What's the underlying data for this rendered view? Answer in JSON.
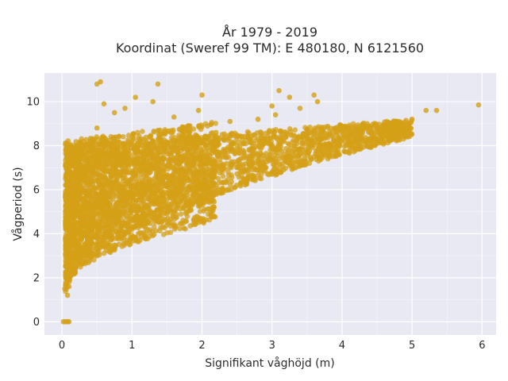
{
  "chart_data": {
    "type": "scatter",
    "title": "År 1979 - 2019",
    "subtitle": "Koordinat (Sweref 99 TM): E 480180, N 6121560",
    "xlabel": "Signifikant våghöjd (m)",
    "ylabel": "Vågperiod (s)",
    "xlim": [
      -0.25,
      6.2
    ],
    "ylim": [
      -0.6,
      11.3
    ],
    "xticks": [
      0,
      1,
      2,
      3,
      4,
      5,
      6
    ],
    "yticks": [
      0,
      2,
      4,
      6,
      8,
      10
    ],
    "xtick_labels": [
      "0",
      "1",
      "2",
      "3",
      "4",
      "5",
      "6"
    ],
    "ytick_labels": [
      "0",
      "2",
      "4",
      "6",
      "8",
      "10"
    ],
    "grid": true,
    "marker_color": "#D4A017",
    "plot_background": "#E8E9F3",
    "series": [
      {
        "points": [
          [
            0.02,
            0
          ],
          [
            0.05,
            0
          ],
          [
            0.08,
            0
          ],
          [
            0.1,
            0
          ],
          [
            0.04,
            1.5
          ],
          [
            0.08,
            1.2
          ],
          [
            0.1,
            1.6
          ],
          [
            0.12,
            2.1
          ],
          [
            0.15,
            2.4
          ],
          [
            0.2,
            2.6
          ],
          [
            0.25,
            2.9
          ],
          [
            0.3,
            3.1
          ],
          [
            0.4,
            3.3
          ],
          [
            0.5,
            3.5
          ],
          [
            0.6,
            3.7
          ],
          [
            0.8,
            3.9
          ],
          [
            1.0,
            4.2
          ],
          [
            1.2,
            4.5
          ],
          [
            1.5,
            4.9
          ],
          [
            1.8,
            5.3
          ],
          [
            2.0,
            5.6
          ],
          [
            2.3,
            6.0
          ],
          [
            2.6,
            6.4
          ],
          [
            3.0,
            6.8
          ],
          [
            3.3,
            7.1
          ],
          [
            3.6,
            7.5
          ],
          [
            3.9,
            7.9
          ],
          [
            4.2,
            8.3
          ],
          [
            4.5,
            8.6
          ],
          [
            4.8,
            8.8
          ],
          [
            5.0,
            9.2
          ],
          [
            5.2,
            9.6
          ],
          [
            5.35,
            9.6
          ],
          [
            5.95,
            9.85
          ],
          [
            4.9,
            8.4
          ],
          [
            4.85,
            9.0
          ],
          [
            0.1,
            4.5
          ],
          [
            0.15,
            6.0
          ],
          [
            0.2,
            7.0
          ],
          [
            0.3,
            7.6
          ],
          [
            0.4,
            8.2
          ],
          [
            0.5,
            8.8
          ],
          [
            0.5,
            10.8
          ],
          [
            0.55,
            10.9
          ],
          [
            0.6,
            9.9
          ],
          [
            0.75,
            9.5
          ],
          [
            0.9,
            9.7
          ],
          [
            1.05,
            10.2
          ],
          [
            1.3,
            10.0
          ],
          [
            1.37,
            10.8
          ],
          [
            1.6,
            9.3
          ],
          [
            1.95,
            9.6
          ],
          [
            2.0,
            10.3
          ],
          [
            2.4,
            9.1
          ],
          [
            2.8,
            9.2
          ],
          [
            3.05,
            9.4
          ],
          [
            3.1,
            10.5
          ],
          [
            3.25,
            10.2
          ],
          [
            3.4,
            9.7
          ],
          [
            3.6,
            10.3
          ],
          [
            3.65,
            10.0
          ],
          [
            3.0,
            9.8
          ],
          [
            2.2,
            8.6
          ],
          [
            1.8,
            8.9
          ],
          [
            1.4,
            8.7
          ],
          [
            1.0,
            8.4
          ],
          [
            0.7,
            8.1
          ],
          [
            0.35,
            6.5
          ],
          [
            0.3,
            5.0
          ],
          [
            0.25,
            4.0
          ]
        ]
      }
    ]
  },
  "scatter_density": {
    "core_band": {
      "x_from": 0.05,
      "x_to": 5.0,
      "lower_start": 1.2,
      "lower_end": 8.4,
      "upper_start": 8.0,
      "upper_end": 9.2
    },
    "dense_region": {
      "x_from": 0.05,
      "x_to": 2.2
    }
  }
}
